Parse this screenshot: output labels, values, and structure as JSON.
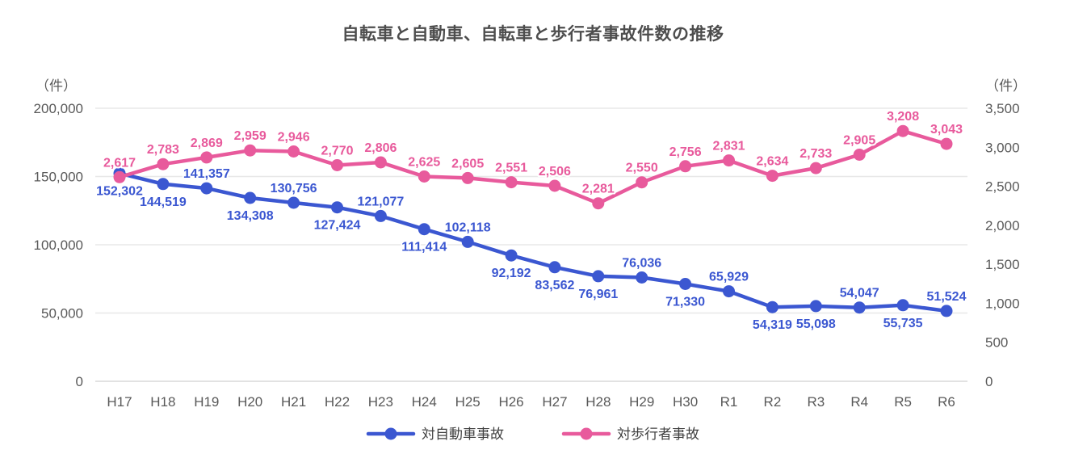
{
  "chart_data": {
    "type": "line",
    "title": "自転車と自動車、自転車と歩行者事故件数の推移",
    "categories": [
      "H17",
      "H18",
      "H19",
      "H20",
      "H21",
      "H22",
      "H23",
      "H24",
      "H25",
      "H26",
      "H27",
      "H28",
      "H29",
      "H30",
      "R1",
      "R2",
      "R3",
      "R4",
      "R5",
      "R6"
    ],
    "series": [
      {
        "name": "対自動車事故",
        "axis": "left",
        "color": "#3b57d1",
        "values": [
          152302,
          144519,
          141357,
          134308,
          130756,
          127424,
          121077,
          111414,
          102118,
          92192,
          83562,
          76961,
          76036,
          71330,
          65929,
          54319,
          55098,
          54047,
          55735,
          51524
        ],
        "label_positions": [
          "below",
          "below",
          "above",
          "below",
          "above",
          "below",
          "above",
          "below",
          "above",
          "below",
          "below",
          "below",
          "above",
          "below",
          "above",
          "below",
          "below",
          "above",
          "below",
          "above"
        ]
      },
      {
        "name": "対歩行者事故",
        "axis": "right",
        "color": "#e85a9c",
        "values": [
          2617,
          2783,
          2869,
          2959,
          2946,
          2770,
          2806,
          2625,
          2605,
          2551,
          2506,
          2281,
          2550,
          2756,
          2831,
          2634,
          2733,
          2905,
          3208,
          3043
        ],
        "label_positions": [
          "above",
          "above",
          "above",
          "above",
          "above",
          "above",
          "above",
          "above",
          "above",
          "above",
          "above",
          "above",
          "above",
          "above",
          "above",
          "above",
          "above",
          "above",
          "above",
          "above"
        ]
      }
    ],
    "left_axis": {
      "unit": "（件）",
      "min": 0,
      "max": 200000,
      "step": 50000
    },
    "right_axis": {
      "unit": "（件）",
      "min": 0,
      "max": 3500,
      "step": 500
    },
    "grid": "horizontal",
    "legend_position": "bottom",
    "colors": {
      "grid_line": "#e8e8e8",
      "zero_line": "#d9d9d9",
      "axis_text": "#595959",
      "title_text": "#4d4d4d"
    }
  }
}
